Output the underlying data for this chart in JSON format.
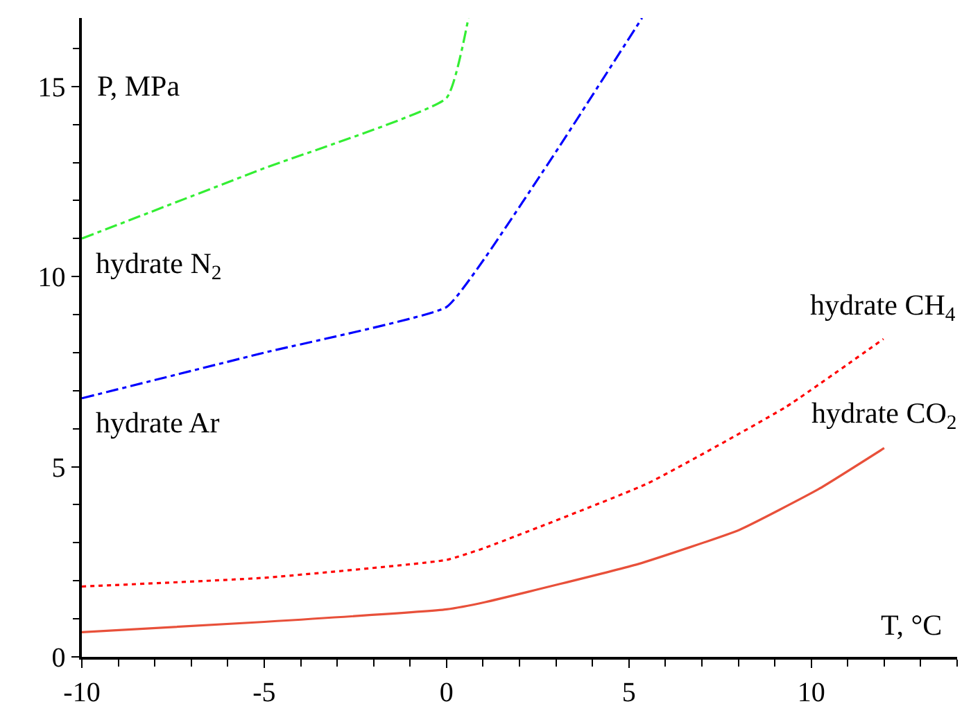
{
  "chart_data": {
    "type": "line",
    "xlabel": "T, °C",
    "ylabel": "P, MPa",
    "xlim": [
      -10,
      14
    ],
    "ylim": [
      0,
      16.8
    ],
    "xticks": [
      -10,
      -5,
      0,
      5,
      10
    ],
    "yticks": [
      0,
      5,
      10,
      15
    ],
    "legend": false,
    "marker": "none",
    "series": [
      {
        "name": "hydrate N$_{2}$",
        "x": [
          -10,
          -5,
          0,
          0.6
        ],
        "values": [
          11.0,
          12.85,
          14.7,
          16.8
        ],
        "color": "#33ee33",
        "line_style": "dashdot"
      },
      {
        "name": "hydrate Ar",
        "x": [
          -10,
          -5,
          0,
          1.06,
          3.08,
          5.36
        ],
        "values": [
          6.8,
          8.0,
          9.2,
          10.5,
          13.4,
          16.8
        ],
        "color": "#0000ff",
        "line_style": "dashdot"
      },
      {
        "name": "hydrate CH$_{4}$",
        "x": [
          -10,
          -5,
          0,
          1.06,
          5.51,
          9.3,
          11.98
        ],
        "values": [
          1.85,
          2.08,
          2.55,
          2.87,
          4.56,
          6.57,
          8.36
        ],
        "color": "#ff0000",
        "line_style": "dotted"
      },
      {
        "name": "hydrate CO$_{2}$",
        "x": [
          -10,
          -5,
          0,
          1.06,
          5.25,
          8.03,
          10.2,
          12
        ],
        "values": [
          0.65,
          0.92,
          1.25,
          1.44,
          2.44,
          3.34,
          4.41,
          5.49
        ],
        "color": "#e8503a",
        "line_style": "solid"
      }
    ]
  }
}
